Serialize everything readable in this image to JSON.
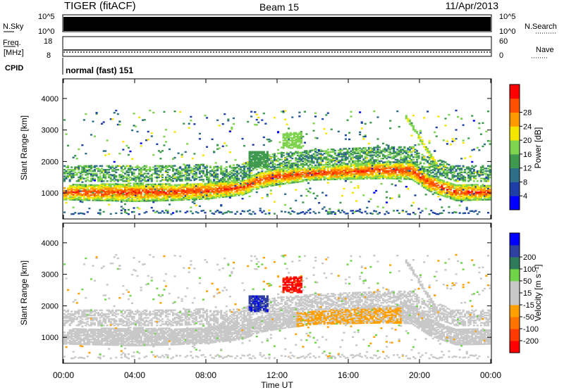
{
  "header": {
    "station": "TIGER (fitACF)",
    "beam": "Beam 15",
    "date": "11/Apr/2013"
  },
  "info_panels": {
    "nsky": {
      "label": "N.Sky",
      "top_tick": "10^5",
      "bottom_tick": "10^0"
    },
    "nsearch": {
      "label": "N.Search",
      "top_tick": "10^5",
      "bottom_tick": "10^0"
    },
    "freq": {
      "label_line1": "Freq.",
      "label_line2": "[MHz]",
      "top_tick": "18",
      "bottom_tick": "8"
    },
    "nave": {
      "label": "Nave",
      "top_tick": "60",
      "bottom_tick": "0"
    },
    "cpid": {
      "label": "CPID",
      "value": "normal (fast) 151"
    }
  },
  "colors": {
    "power_scale": [
      "#0000ff",
      "#1f3fa8",
      "#2f6e88",
      "#3f9a4f",
      "#7ed34f",
      "#f5e600",
      "#ff9a00",
      "#ff5000",
      "#ff0000"
    ],
    "velocity_scale": [
      "#0000ff",
      "#2e3fa0",
      "#2f7a5a",
      "#6fd447",
      "#c8c8c8",
      "#c8c8c8",
      "#ffa000",
      "#ff7400",
      "#ff3a00",
      "#ff0000"
    ]
  },
  "chart_data": [
    {
      "type": "heatmap",
      "title": "Power",
      "xlabel": "Time UT",
      "ylabel": "Slant Range [km]",
      "x_ticks": [
        "00:00",
        "04:00",
        "08:00",
        "12:00",
        "16:00",
        "20:00",
        "00:00"
      ],
      "y_ticks": [
        "1000",
        "2000",
        "3000",
        "4000"
      ],
      "ylim": [
        200,
        4600
      ],
      "colorbar": {
        "label": "Power [dB]",
        "ticks": [
          "4",
          "8",
          "12",
          "16",
          "20",
          "24",
          "28"
        ],
        "range": [
          0,
          32
        ]
      },
      "bands": [
        {
          "name": "main",
          "t": [
            0,
            2,
            4,
            6,
            8,
            10,
            11,
            12,
            14,
            16,
            18,
            19.5,
            20.5,
            22,
            24
          ],
          "center": [
            1000,
            1000,
            1000,
            1000,
            1050,
            1150,
            1400,
            1500,
            1600,
            1650,
            1700,
            1700,
            1300,
            1000,
            1000
          ],
          "width": [
            180,
            200,
            220,
            200,
            200,
            180,
            200,
            200,
            160,
            180,
            200,
            220,
            200,
            200,
            180
          ]
        }
      ]
    },
    {
      "type": "heatmap",
      "title": "Velocity",
      "xlabel": "Time UT",
      "ylabel": "Slant Range [km]",
      "x_ticks": [
        "00:00",
        "04:00",
        "08:00",
        "12:00",
        "16:00",
        "20:00",
        "00:00"
      ],
      "y_ticks": [
        "1000",
        "2000",
        "3000",
        "4000"
      ],
      "ylim": [
        200,
        4600
      ],
      "colorbar": {
        "label": "Velocity [m s⁻¹]",
        "ticks": [
          "200",
          "100",
          "50",
          "15",
          "-15",
          "-50",
          "-100",
          "-200"
        ],
        "range": [
          250,
          -250
        ]
      }
    }
  ]
}
